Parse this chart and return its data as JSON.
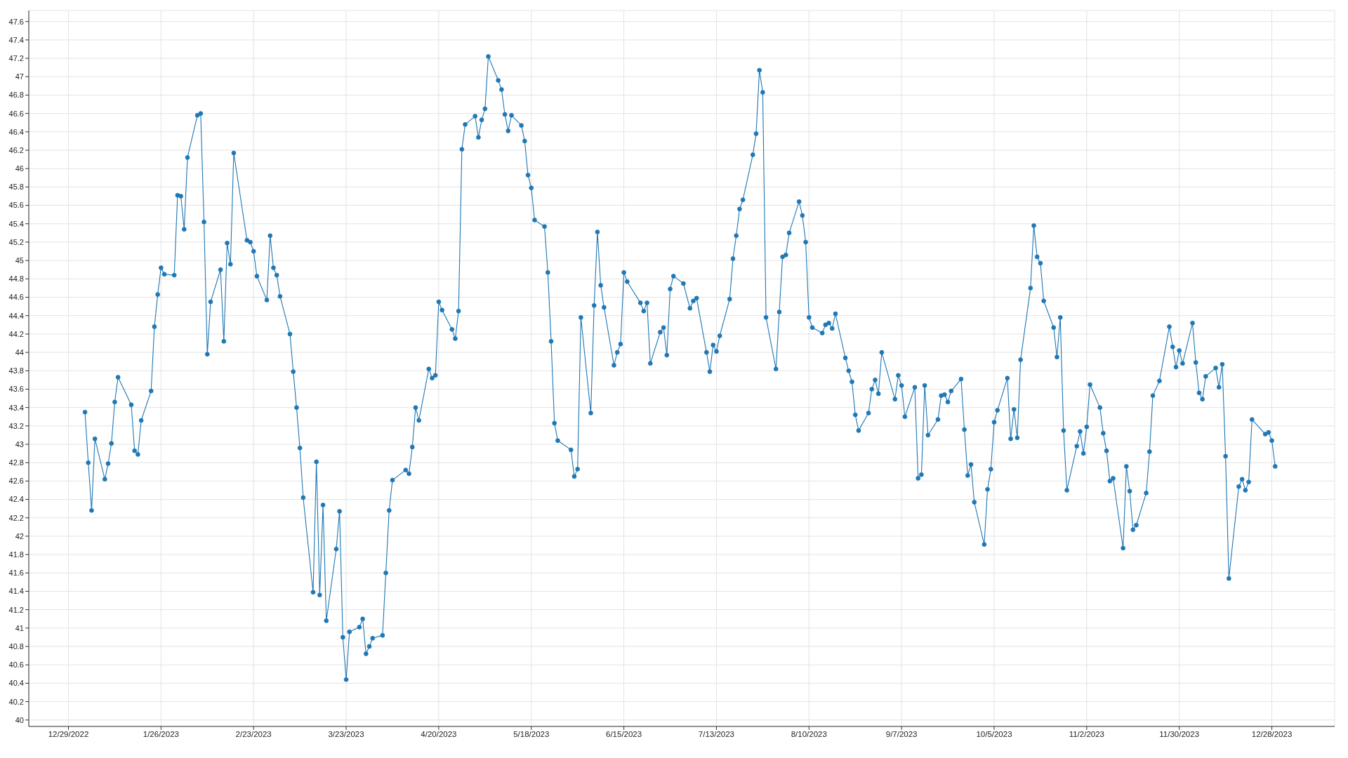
{
  "chart_data": {
    "type": "line",
    "color": "#1f77b4",
    "marker": "circle",
    "line_style": "solid",
    "grid": true,
    "xlim": [
      "2022-12-17",
      "2024-01-16"
    ],
    "xticks": [
      {
        "value": "2022-12-29",
        "label": "12/29/2022"
      },
      {
        "value": "2023-01-26",
        "label": "1/26/2023"
      },
      {
        "value": "2023-02-23",
        "label": "2/23/2023"
      },
      {
        "value": "2023-03-23",
        "label": "3/23/2023"
      },
      {
        "value": "2023-04-20",
        "label": "4/20/2023"
      },
      {
        "value": "2023-05-18",
        "label": "5/18/2023"
      },
      {
        "value": "2023-06-15",
        "label": "6/15/2023"
      },
      {
        "value": "2023-07-13",
        "label": "7/13/2023"
      },
      {
        "value": "2023-08-10",
        "label": "8/10/2023"
      },
      {
        "value": "2023-09-07",
        "label": "9/7/2023"
      },
      {
        "value": "2023-10-05",
        "label": "10/5/2023"
      },
      {
        "value": "2023-11-02",
        "label": "11/2/2023"
      },
      {
        "value": "2023-11-30",
        "label": "11/30/2023"
      },
      {
        "value": "2023-12-28",
        "label": "12/28/2023"
      }
    ],
    "ylim": [
      39.93,
      47.72
    ],
    "yticks": [
      40,
      40.2,
      40.4,
      40.6,
      40.8,
      41,
      41.2,
      41.4,
      41.6,
      41.8,
      42,
      42.2,
      42.4,
      42.6,
      42.8,
      43,
      43.2,
      43.4,
      43.6,
      43.8,
      44,
      44.2,
      44.4,
      44.6,
      44.8,
      45,
      45.2,
      45.4,
      45.6,
      45.8,
      46,
      46.2,
      46.4,
      46.6,
      46.8,
      47,
      47.2,
      47.4,
      47.6
    ],
    "x": [
      "2023-01-03",
      "2023-01-04",
      "2023-01-05",
      "2023-01-06",
      "2023-01-09",
      "2023-01-10",
      "2023-01-11",
      "2023-01-12",
      "2023-01-13",
      "2023-01-17",
      "2023-01-18",
      "2023-01-19",
      "2023-01-20",
      "2023-01-23",
      "2023-01-24",
      "2023-01-25",
      "2023-01-26",
      "2023-01-27",
      "2023-01-30",
      "2023-01-31",
      "2023-02-01",
      "2023-02-02",
      "2023-02-03",
      "2023-02-06",
      "2023-02-07",
      "2023-02-08",
      "2023-02-09",
      "2023-02-10",
      "2023-02-13",
      "2023-02-14",
      "2023-02-15",
      "2023-02-16",
      "2023-02-17",
      "2023-02-21",
      "2023-02-22",
      "2023-02-23",
      "2023-02-24",
      "2023-02-27",
      "2023-02-28",
      "2023-03-01",
      "2023-03-02",
      "2023-03-03",
      "2023-03-06",
      "2023-03-07",
      "2023-03-08",
      "2023-03-09",
      "2023-03-10",
      "2023-03-13",
      "2023-03-14",
      "2023-03-15",
      "2023-03-16",
      "2023-03-17",
      "2023-03-20",
      "2023-03-21",
      "2023-03-22",
      "2023-03-23",
      "2023-03-24",
      "2023-03-27",
      "2023-03-28",
      "2023-03-29",
      "2023-03-30",
      "2023-03-31",
      "2023-04-03",
      "2023-04-04",
      "2023-04-05",
      "2023-04-06",
      "2023-04-10",
      "2023-04-11",
      "2023-04-12",
      "2023-04-13",
      "2023-04-14",
      "2023-04-17",
      "2023-04-18",
      "2023-04-19",
      "2023-04-20",
      "2023-04-21",
      "2023-04-24",
      "2023-04-25",
      "2023-04-26",
      "2023-04-27",
      "2023-04-28",
      "2023-05-01",
      "2023-05-02",
      "2023-05-03",
      "2023-05-04",
      "2023-05-05",
      "2023-05-08",
      "2023-05-09",
      "2023-05-10",
      "2023-05-11",
      "2023-05-12",
      "2023-05-15",
      "2023-05-16",
      "2023-05-17",
      "2023-05-18",
      "2023-05-19",
      "2023-05-22",
      "2023-05-23",
      "2023-05-24",
      "2023-05-25",
      "2023-05-26",
      "2023-05-30",
      "2023-05-31",
      "2023-06-01",
      "2023-06-02",
      "2023-06-05",
      "2023-06-06",
      "2023-06-07",
      "2023-06-08",
      "2023-06-09",
      "2023-06-12",
      "2023-06-13",
      "2023-06-14",
      "2023-06-15",
      "2023-06-16",
      "2023-06-20",
      "2023-06-21",
      "2023-06-22",
      "2023-06-23",
      "2023-06-26",
      "2023-06-27",
      "2023-06-28",
      "2023-06-29",
      "2023-06-30",
      "2023-07-03",
      "2023-07-05",
      "2023-07-06",
      "2023-07-07",
      "2023-07-10",
      "2023-07-11",
      "2023-07-12",
      "2023-07-13",
      "2023-07-14",
      "2023-07-17",
      "2023-07-18",
      "2023-07-19",
      "2023-07-20",
      "2023-07-21",
      "2023-07-24",
      "2023-07-25",
      "2023-07-26",
      "2023-07-27",
      "2023-07-28",
      "2023-07-31",
      "2023-08-01",
      "2023-08-02",
      "2023-08-03",
      "2023-08-04",
      "2023-08-07",
      "2023-08-08",
      "2023-08-09",
      "2023-08-10",
      "2023-08-11",
      "2023-08-14",
      "2023-08-15",
      "2023-08-16",
      "2023-08-17",
      "2023-08-18",
      "2023-08-21",
      "2023-08-22",
      "2023-08-23",
      "2023-08-24",
      "2023-08-25",
      "2023-08-28",
      "2023-08-29",
      "2023-08-30",
      "2023-08-31",
      "2023-09-01",
      "2023-09-05",
      "2023-09-06",
      "2023-09-07",
      "2023-09-08",
      "2023-09-11",
      "2023-09-12",
      "2023-09-13",
      "2023-09-14",
      "2023-09-15",
      "2023-09-18",
      "2023-09-19",
      "2023-09-20",
      "2023-09-21",
      "2023-09-22",
      "2023-09-25",
      "2023-09-26",
      "2023-09-27",
      "2023-09-28",
      "2023-09-29",
      "2023-10-02",
      "2023-10-03",
      "2023-10-04",
      "2023-10-05",
      "2023-10-06",
      "2023-10-09",
      "2023-10-10",
      "2023-10-11",
      "2023-10-12",
      "2023-10-13",
      "2023-10-16",
      "2023-10-17",
      "2023-10-18",
      "2023-10-19",
      "2023-10-20",
      "2023-10-23",
      "2023-10-24",
      "2023-10-25",
      "2023-10-26",
      "2023-10-27",
      "2023-10-30",
      "2023-10-31",
      "2023-11-01",
      "2023-11-02",
      "2023-11-03",
      "2023-11-06",
      "2023-11-07",
      "2023-11-08",
      "2023-11-09",
      "2023-11-10",
      "2023-11-13",
      "2023-11-14",
      "2023-11-15",
      "2023-11-16",
      "2023-11-17",
      "2023-11-20",
      "2023-11-21",
      "2023-11-22",
      "2023-11-24",
      "2023-11-27",
      "2023-11-28",
      "2023-11-29",
      "2023-11-30",
      "2023-12-01",
      "2023-12-04",
      "2023-12-05",
      "2023-12-06",
      "2023-12-07",
      "2023-12-08",
      "2023-12-11",
      "2023-12-12",
      "2023-12-13",
      "2023-12-14",
      "2023-12-15",
      "2023-12-18",
      "2023-12-19",
      "2023-12-20",
      "2023-12-21",
      "2023-12-22",
      "2023-12-26",
      "2023-12-27",
      "2023-12-28",
      "2023-12-29"
    ],
    "values": [
      43.35,
      42.8,
      42.28,
      43.06,
      42.62,
      42.79,
      43.01,
      43.46,
      43.73,
      43.43,
      42.93,
      42.89,
      43.26,
      43.58,
      44.28,
      44.63,
      44.92,
      44.85,
      44.84,
      45.71,
      45.7,
      45.34,
      46.12,
      46.58,
      46.6,
      45.42,
      43.98,
      44.55,
      44.9,
      44.12,
      45.19,
      44.96,
      46.17,
      45.22,
      45.2,
      45.1,
      44.83,
      44.57,
      45.27,
      44.92,
      44.84,
      44.61,
      44.2,
      43.79,
      43.4,
      42.96,
      42.42,
      41.39,
      42.81,
      41.36,
      42.34,
      41.08,
      41.86,
      42.27,
      40.9,
      40.44,
      40.96,
      41.01,
      41.1,
      40.72,
      40.8,
      40.89,
      40.92,
      41.6,
      42.28,
      42.61,
      42.72,
      42.68,
      42.97,
      43.4,
      43.26,
      43.82,
      43.72,
      43.75,
      44.55,
      44.46,
      44.25,
      44.15,
      44.45,
      46.21,
      46.48,
      46.57,
      46.34,
      46.53,
      46.65,
      47.22,
      46.96,
      46.86,
      46.59,
      46.41,
      46.58,
      46.47,
      46.3,
      45.93,
      45.79,
      45.44,
      45.37,
      44.87,
      44.12,
      43.23,
      43.04,
      42.94,
      42.65,
      42.73,
      44.38,
      43.34,
      44.51,
      45.31,
      44.73,
      44.49,
      43.86,
      44.0,
      44.09,
      44.87,
      44.77,
      44.54,
      44.45,
      44.54,
      43.88,
      44.22,
      44.27,
      43.97,
      44.69,
      44.83,
      44.75,
      44.48,
      44.56,
      44.59,
      44.0,
      43.79,
      44.08,
      44.01,
      44.18,
      44.58,
      45.02,
      45.27,
      45.56,
      45.66,
      46.15,
      46.38,
      47.07,
      46.83,
      44.38,
      43.82,
      44.44,
      45.04,
      45.06,
      45.3,
      45.64,
      45.49,
      45.2,
      44.38,
      44.27,
      44.21,
      44.3,
      44.32,
      44.26,
      44.42,
      43.94,
      43.8,
      43.68,
      43.32,
      43.15,
      43.34,
      43.6,
      43.7,
      43.55,
      44.0,
      43.49,
      43.75,
      43.64,
      43.3,
      43.62,
      42.63,
      42.67,
      43.64,
      43.1,
      43.27,
      43.53,
      43.54,
      43.46,
      43.58,
      43.71,
      43.16,
      42.66,
      42.78,
      42.37,
      41.91,
      42.51,
      42.73,
      43.24,
      43.37,
      43.72,
      43.06,
      43.38,
      43.07,
      43.92,
      44.7,
      45.38,
      45.04,
      44.97,
      44.56,
      44.27,
      43.95,
      44.38,
      43.15,
      42.5,
      42.98,
      43.14,
      42.9,
      43.19,
      43.65,
      43.4,
      43.12,
      42.93,
      42.6,
      42.63,
      41.87,
      42.76,
      42.49,
      42.07,
      42.12,
      42.47,
      42.92,
      43.53,
      43.69,
      44.28,
      44.06,
      43.84,
      44.02,
      43.88,
      44.32,
      43.89,
      43.56,
      43.49,
      43.74,
      43.83,
      43.62,
      43.87,
      42.87,
      41.54,
      42.54,
      42.62,
      42.5,
      42.59,
      43.27,
      43.11,
      43.13,
      43.04,
      42.76
    ]
  }
}
